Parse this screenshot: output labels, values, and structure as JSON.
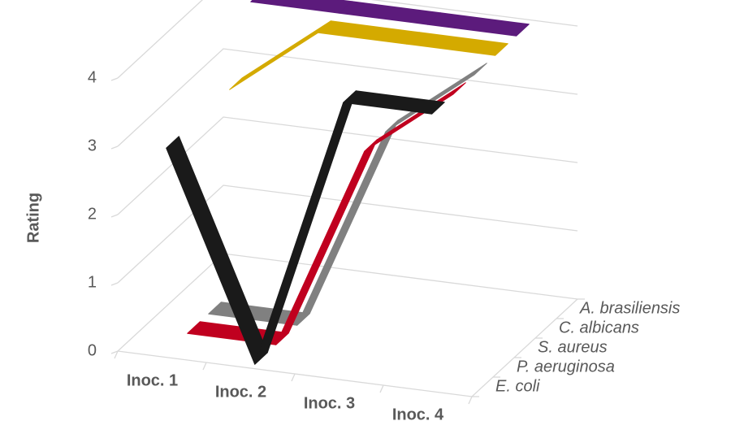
{
  "chart_data": {
    "type": "line3d",
    "y_axis_label": "Rating",
    "categories": [
      "Inoc. 1",
      "Inoc. 2",
      "Inoc. 3",
      "Inoc. 4"
    ],
    "series": [
      {
        "name": "E. coli",
        "color": "#1a1a1a",
        "values": [
          3,
          0,
          4,
          4
        ]
      },
      {
        "name": "P. aeruginosa",
        "color": "#c0001f",
        "values": [
          0,
          0,
          3,
          4
        ]
      },
      {
        "name": "S. aureus",
        "color": "#808080",
        "values": [
          0,
          0,
          3,
          4
        ]
      },
      {
        "name": "C. albicans",
        "color": "#d4aa00",
        "values": [
          3,
          4,
          4,
          4
        ]
      },
      {
        "name": "A. brasiliensis",
        "color": "#5c1b7c",
        "values": [
          4,
          4,
          4,
          4
        ]
      }
    ],
    "ylim": [
      0,
      4
    ],
    "yticks": [
      0,
      1,
      2,
      3,
      4
    ],
    "grid": true
  }
}
